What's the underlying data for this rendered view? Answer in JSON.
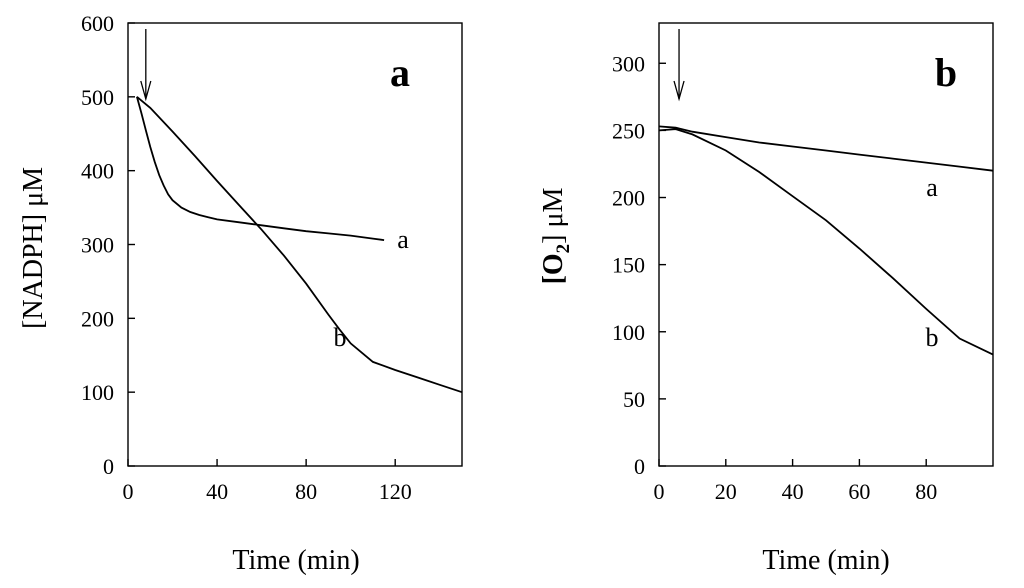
{
  "chart_data": [
    {
      "type": "line",
      "panel_label": "a",
      "xlabel": "Time (min)",
      "ylabel": "[NADPH]  μM",
      "xlim": [
        0,
        150
      ],
      "ylim": [
        0,
        600
      ],
      "xticks": [
        0,
        40,
        80,
        120
      ],
      "yticks": [
        0,
        100,
        200,
        300,
        400,
        500,
        600
      ],
      "arrow": {
        "x": 8
      },
      "series": [
        {
          "name": "a",
          "label": "a",
          "x": [
            4,
            6,
            8,
            10,
            12,
            14,
            16,
            18,
            20,
            24,
            28,
            32,
            36,
            40,
            50,
            60,
            70,
            80,
            90,
            100,
            110,
            115
          ],
          "y": [
            500,
            478,
            455,
            432,
            412,
            394,
            380,
            368,
            360,
            350,
            344,
            340,
            337,
            334,
            330,
            326,
            322,
            318,
            315,
            312,
            308,
            306
          ]
        },
        {
          "name": "b",
          "label": "b",
          "x": [
            4,
            10,
            20,
            30,
            40,
            50,
            60,
            70,
            80,
            90,
            95,
            100,
            110,
            120,
            130,
            140,
            150
          ],
          "y": [
            500,
            485,
            453,
            420,
            386,
            353,
            320,
            285,
            247,
            205,
            185,
            166,
            141,
            130,
            120,
            110,
            100
          ]
        }
      ]
    },
    {
      "type": "line",
      "panel_label": "b",
      "xlabel": "Time (min)",
      "ylabel_main": "[O",
      "ylabel_sub": "2",
      "ylabel_tail": "]  μM",
      "xlim": [
        0,
        100
      ],
      "ylim": [
        0,
        330
      ],
      "xticks": [
        0,
        20,
        40,
        60,
        80
      ],
      "yticks": [
        0,
        50,
        100,
        150,
        200,
        250,
        300
      ],
      "arrow": {
        "x": 6
      },
      "series": [
        {
          "name": "a",
          "label": "a",
          "x": [
            0,
            5,
            10,
            20,
            30,
            40,
            50,
            60,
            70,
            80,
            90,
            100
          ],
          "y": [
            253,
            252,
            249,
            245,
            241,
            238,
            235,
            232,
            229,
            226,
            223,
            220
          ]
        },
        {
          "name": "b",
          "label": "b",
          "x": [
            0,
            5,
            10,
            20,
            30,
            40,
            50,
            60,
            70,
            80,
            90,
            100
          ],
          "y": [
            250,
            251,
            247,
            235,
            219,
            201,
            183,
            162,
            140,
            117,
            95,
            83
          ]
        }
      ]
    }
  ]
}
